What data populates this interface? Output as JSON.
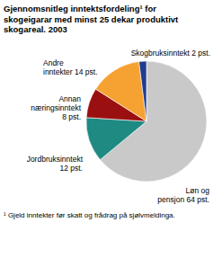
{
  "chart_data": {
    "type": "pie",
    "title": "Gjennomsnitleg inntektsfordeling¹ for skogeigarar med minst 25 dekar produktivt skogareal. 2003",
    "categories": [
      "Løn og pensjon",
      "Jordbruksinntekt",
      "Annan næringsinntekt",
      "Andre inntekter",
      "Skogbruksinntekt"
    ],
    "values": [
      64,
      12,
      8,
      14,
      2
    ],
    "value_labels": [
      "64 pst.",
      "12 pst.",
      "8 pst.",
      "14 pst.",
      "2 pst."
    ],
    "colors": [
      "#c9c9c9",
      "#1e8a82",
      "#9a1010",
      "#f6a233",
      "#1f3c8e"
    ],
    "data_labels": true,
    "footnote": "¹ Gjeld inntekter før skatt og frådrag på sjølvmeldinga."
  }
}
